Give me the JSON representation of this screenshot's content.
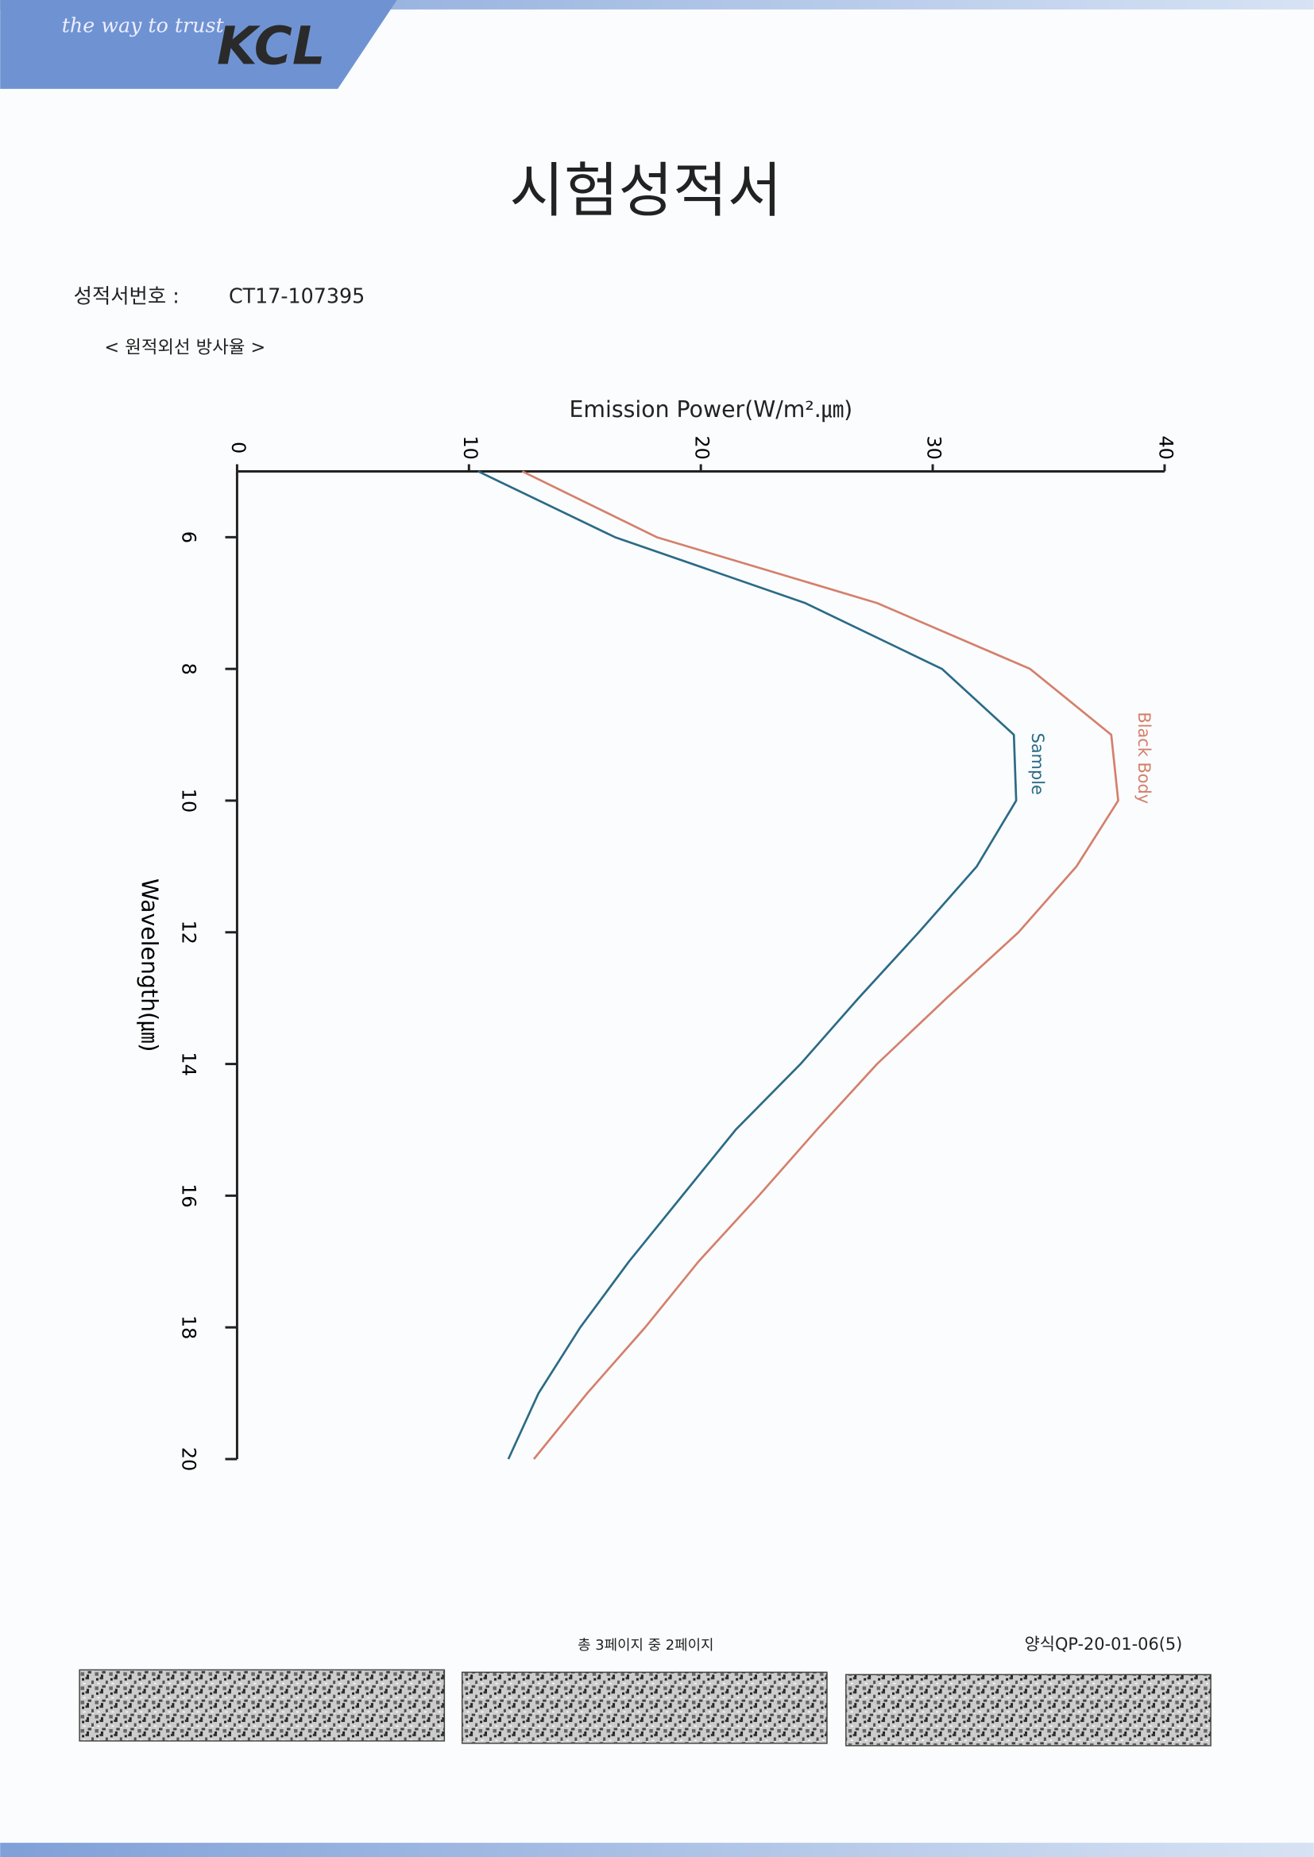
{
  "header": {
    "tagline": "the way to trust",
    "logo": "KCL"
  },
  "document": {
    "title": "시험성적서",
    "report_number_label": "성적서번호 :",
    "report_number": "CT17-107395",
    "section": "< 원적외선 방사율 >"
  },
  "chart_data": {
    "type": "line",
    "orientation": "rotated",
    "y_label": "Emission Power(W/m².㎛)",
    "x_label": "Wavelength(㎛)",
    "x": [
      5,
      6,
      7,
      8,
      9,
      10,
      11,
      12,
      13,
      14,
      15,
      16,
      17,
      18,
      19,
      20
    ],
    "xlim": [
      5,
      20
    ],
    "xticks": [
      6,
      8,
      10,
      12,
      14,
      16,
      18,
      20
    ],
    "ylim": [
      0,
      40
    ],
    "yticks": [
      0,
      10,
      20,
      30,
      40
    ],
    "series": [
      {
        "name": "Sample",
        "color": "#2b6b86",
        "values": [
          10.4,
          16.3,
          24.5,
          30.4,
          33.5,
          33.6,
          31.9,
          29.4,
          26.8,
          24.3,
          21.5,
          19.2,
          16.9,
          14.8,
          13.0,
          11.7
        ]
      },
      {
        "name": "Black Body",
        "color": "#d4806c",
        "values": [
          12.3,
          18.1,
          27.6,
          34.2,
          37.7,
          38.0,
          36.2,
          33.7,
          30.6,
          27.6,
          25.0,
          22.5,
          19.9,
          17.6,
          15.1,
          12.8
        ]
      }
    ]
  },
  "footer": {
    "page": "총 3페이지 중 2페이지",
    "form_code": "양식QP-20-01-06(5)"
  }
}
